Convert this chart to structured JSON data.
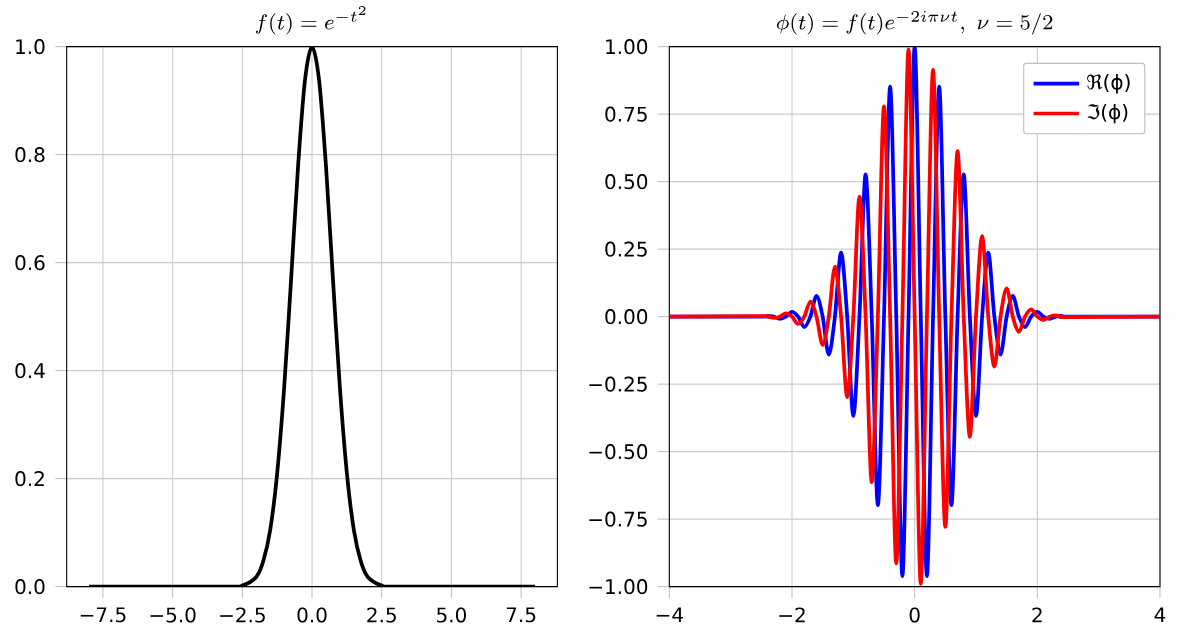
{
  "chart_data": [
    {
      "type": "line",
      "title": "f(t)=e^{-t^2}",
      "x": [
        -8,
        -3,
        -2.5,
        -2,
        -1.75,
        -1.5,
        -1.25,
        -1,
        -0.75,
        -0.5,
        -0.25,
        0,
        0.25,
        0.5,
        0.75,
        1,
        1.25,
        1.5,
        1.75,
        2,
        2.5,
        3,
        8
      ],
      "series": [
        {
          "color": "#000000",
          "values": [
            0,
            0,
            0.002,
            0.018,
            0.047,
            0.105,
            0.21,
            0.368,
            0.57,
            0.779,
            0.939,
            1,
            0.939,
            0.779,
            0.57,
            0.368,
            0.21,
            0.105,
            0.047,
            0.018,
            0.002,
            0,
            0
          ]
        }
      ],
      "xlim": [
        -8.8,
        8.8
      ],
      "ylim": [
        0,
        1
      ],
      "xticks": [
        {
          "value": -7.5,
          "label": "−7.5"
        },
        {
          "value": -5,
          "label": "−5.0"
        },
        {
          "value": -2.5,
          "label": "−2.5"
        },
        {
          "value": 0,
          "label": "0.0"
        },
        {
          "value": 2.5,
          "label": "2.5"
        },
        {
          "value": 5,
          "label": "5.0"
        },
        {
          "value": 7.5,
          "label": "7.5"
        }
      ],
      "yticks": [
        {
          "value": 0,
          "label": "0.0"
        },
        {
          "value": 0.2,
          "label": "0.2"
        },
        {
          "value": 0.4,
          "label": "0.4"
        },
        {
          "value": 0.6,
          "label": "0.6"
        },
        {
          "value": 0.8,
          "label": "0.8"
        },
        {
          "value": 1,
          "label": "1.0"
        }
      ],
      "grid": true,
      "legend": false
    },
    {
      "type": "line",
      "title": "\\phi(t)=f(t)e^{-2i\\pi\\nu t},\\ \\nu=5/2",
      "x": [
        -4,
        -2.5,
        -2.4,
        -2.3,
        -2.2,
        -2.1,
        -2,
        -1.9,
        -1.8,
        -1.7,
        -1.6,
        -1.5,
        -1.4,
        -1.3,
        -1.2,
        -1.1,
        -1,
        -0.9,
        -0.8,
        -0.7,
        -0.6,
        -0.5,
        -0.4,
        -0.3,
        -0.2,
        -0.1,
        0,
        0.1,
        0.2,
        0.3,
        0.4,
        0.5,
        0.6,
        0.7,
        0.8,
        0.9,
        1,
        1.1,
        1.2,
        1.3,
        1.4,
        1.5,
        1.6,
        1.7,
        1.8,
        1.9,
        2,
        2.1,
        2.2,
        2.3,
        2.4,
        2.5,
        4
      ],
      "series": [
        {
          "name": "ℜ(ϕ)",
          "color": "#0000ff",
          "values": [
            0,
            0,
            0.003,
            0,
            -0.008,
            0,
            0.018,
            0,
            -0.039,
            0,
            0.077,
            0,
            -0.141,
            0,
            0.237,
            0,
            -0.368,
            0,
            0.527,
            0,
            -0.698,
            0,
            0.852,
            0,
            -0.961,
            0,
            1,
            0,
            -0.961,
            0,
            0.852,
            0,
            -0.698,
            0,
            0.527,
            0,
            -0.368,
            0,
            0.237,
            0,
            -0.141,
            0,
            0.077,
            0,
            -0.039,
            0,
            0.018,
            0,
            -0.008,
            0,
            0.003,
            0,
            0
          ]
        },
        {
          "name": "ℑ(ϕ)",
          "color": "#ff0000",
          "values": [
            0,
            0.002,
            0,
            -0.005,
            0,
            0.012,
            0,
            -0.027,
            0,
            0.056,
            0,
            -0.105,
            0,
            0.185,
            0,
            -0.298,
            0,
            0.445,
            0,
            -0.613,
            0,
            0.779,
            0,
            -0.914,
            0,
            0.99,
            0,
            -0.99,
            0,
            0.914,
            0,
            -0.779,
            0,
            0.613,
            0,
            -0.445,
            0,
            0.298,
            0,
            -0.185,
            0,
            0.105,
            0,
            -0.056,
            0,
            0.027,
            0,
            -0.012,
            0,
            0.005,
            0,
            -0.002,
            0
          ]
        }
      ],
      "xlim": [
        -4,
        4
      ],
      "ylim": [
        -1,
        1
      ],
      "xticks": [
        {
          "value": -4,
          "label": "−4"
        },
        {
          "value": -2,
          "label": "−2"
        },
        0,
        2,
        4
      ],
      "yticks": [
        {
          "value": -1,
          "label": "−1.00"
        },
        {
          "value": -0.75,
          "label": "−0.75"
        },
        {
          "value": -0.5,
          "label": "−0.50"
        },
        {
          "value": -0.25,
          "label": "−0.25"
        },
        {
          "value": 0,
          "label": "0.00"
        },
        {
          "value": 0.25,
          "label": "0.25"
        },
        {
          "value": 0.5,
          "label": "0.50"
        },
        {
          "value": 0.75,
          "label": "0.75"
        },
        {
          "value": 1,
          "label": "1.00"
        }
      ],
      "grid": true,
      "legend": "top right"
    }
  ]
}
